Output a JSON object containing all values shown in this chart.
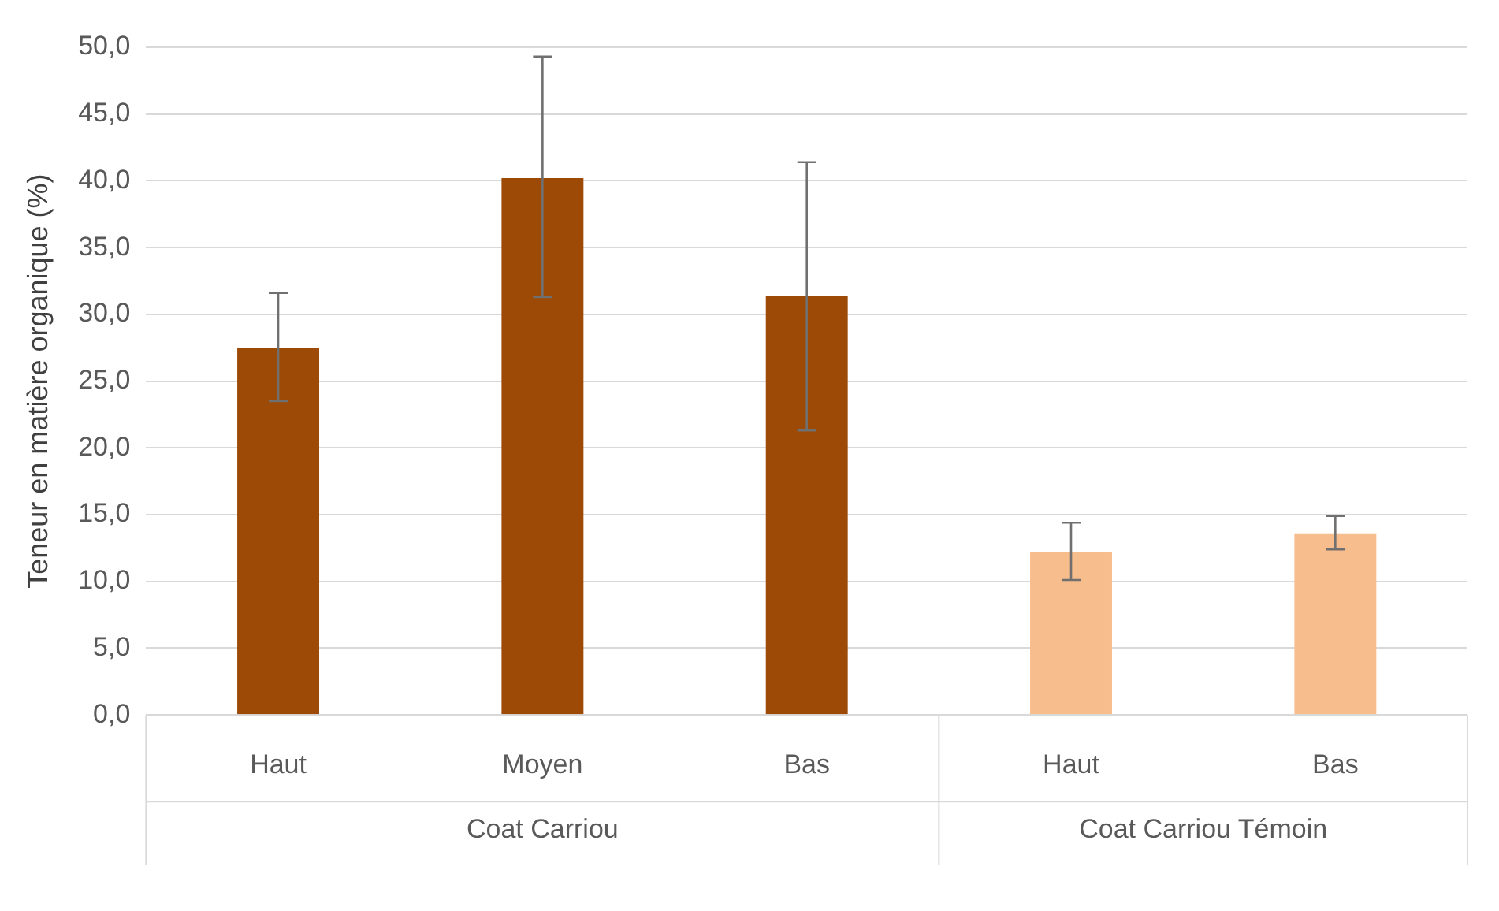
{
  "chart_data": {
    "type": "bar",
    "ylabel": "Teneur en matière organique (%)",
    "categories": [
      "Haut",
      "Moyen",
      "Bas",
      "Haut",
      "Bas"
    ],
    "values": [
      27.5,
      40.2,
      31.4,
      12.2,
      13.6
    ],
    "colors": [
      "#9c4a06",
      "#9c4a06",
      "#9c4a06",
      "#f8bd8c",
      "#f8bd8c"
    ],
    "errors": [
      [
        23.5,
        31.6
      ],
      [
        31.3,
        49.3
      ],
      [
        21.3,
        41.4
      ],
      [
        10.1,
        14.4
      ],
      [
        12.4,
        14.9
      ]
    ],
    "ylim": [
      0,
      50
    ],
    "yticks": [
      {
        "value": 0,
        "label": "0,0"
      },
      {
        "value": 5,
        "label": "5,0"
      },
      {
        "value": 10,
        "label": "10,0"
      },
      {
        "value": 15,
        "label": "15,0"
      },
      {
        "value": 20,
        "label": "20,0"
      },
      {
        "value": 25,
        "label": "25,0"
      },
      {
        "value": 30,
        "label": "30,0"
      },
      {
        "value": 35,
        "label": "35,0"
      },
      {
        "value": 40,
        "label": "40,0"
      },
      {
        "value": 45,
        "label": "45,0"
      },
      {
        "value": 50,
        "label": "50,0"
      }
    ],
    "grid": "y",
    "legend": false,
    "annotations": [
      "Coat Carriou",
      "Coat Carriou Témoin"
    ]
  }
}
